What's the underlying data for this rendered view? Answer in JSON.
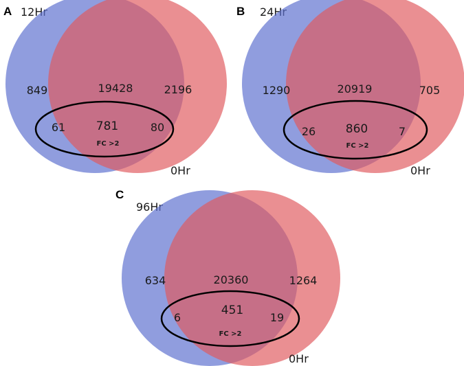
{
  "colors": {
    "left_circle": "#5b6fcf",
    "right_circle": "#e05a5f",
    "ellipse_stroke": "#000000"
  },
  "panels": [
    {
      "letter": "A",
      "left_label": "12Hr",
      "right_label": "0Hr",
      "left_only": "849",
      "overlap": "19428",
      "right_only": "2196",
      "fc_left": "61",
      "fc_overlap": "781",
      "fc_right": "80",
      "fc_label": "FC >2"
    },
    {
      "letter": "B",
      "left_label": "24Hr",
      "right_label": "0Hr",
      "left_only": "1290",
      "overlap": "20919",
      "right_only": "705",
      "fc_left": "26",
      "fc_overlap": "860",
      "fc_right": "7",
      "fc_label": "FC >2"
    },
    {
      "letter": "C",
      "left_label": "96Hr",
      "right_label": "0Hr",
      "left_only": "634",
      "overlap": "20360",
      "right_only": "1264",
      "fc_left": "6",
      "fc_overlap": "451",
      "fc_right": "19",
      "fc_label": "FC >2"
    }
  ]
}
